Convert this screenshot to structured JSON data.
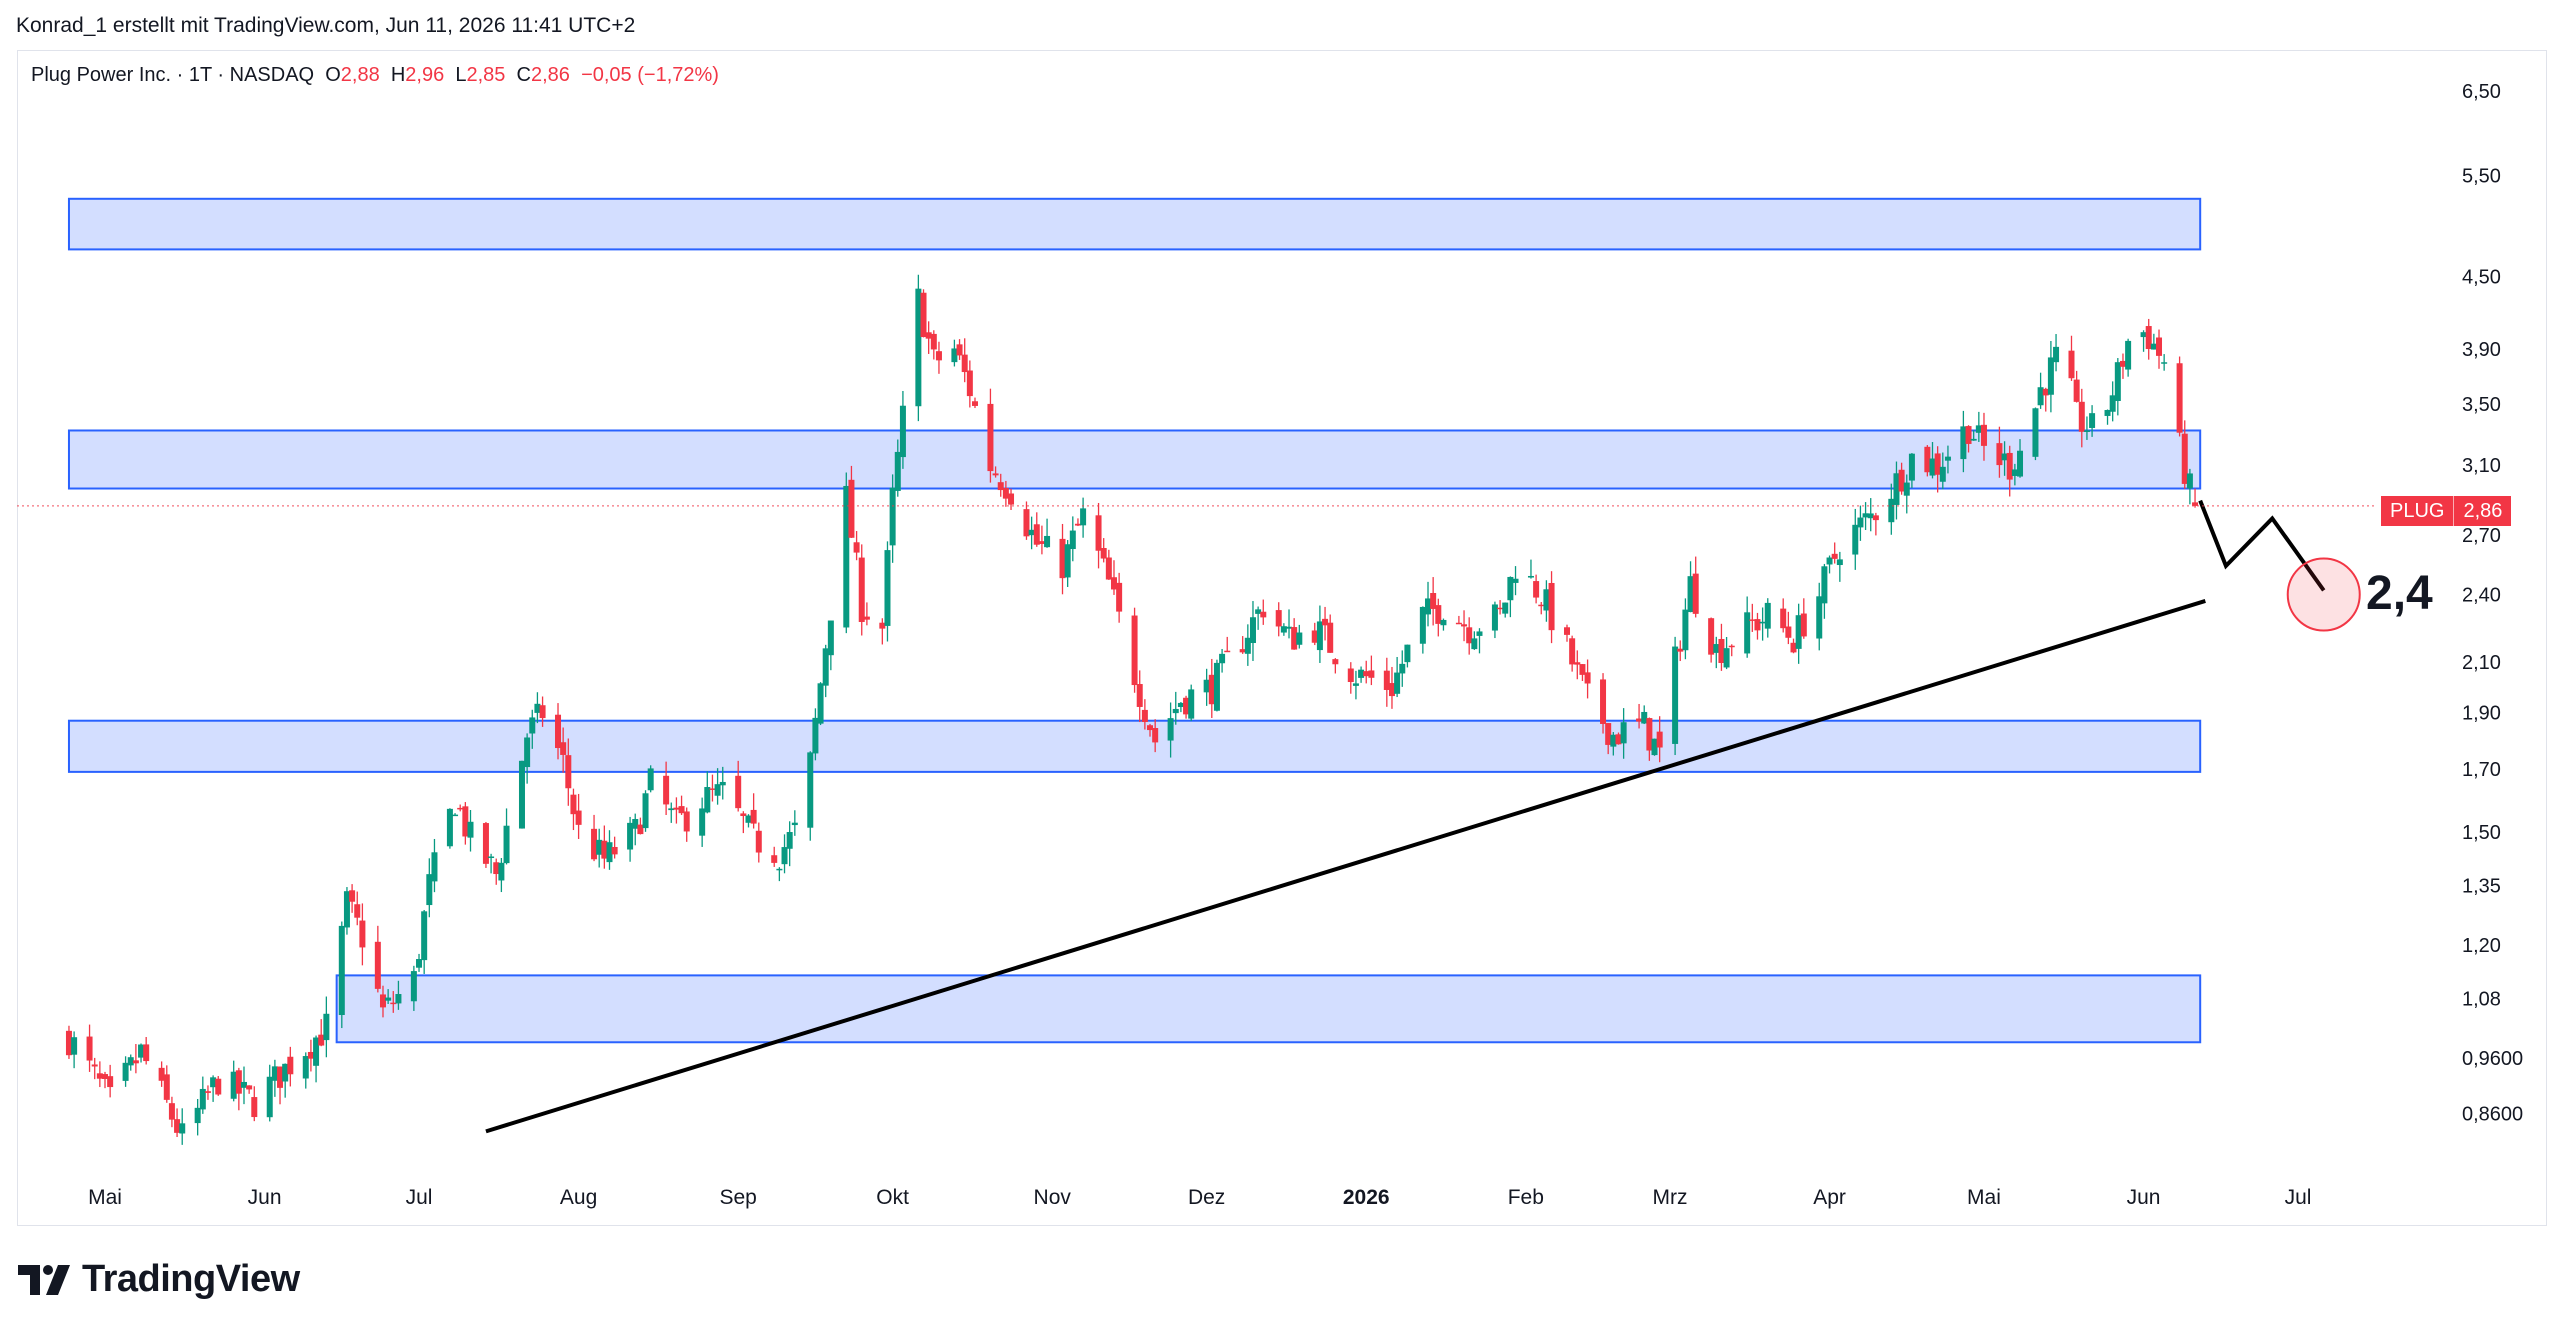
{
  "header": {
    "attribution": "Konrad_1 erstellt mit TradingView.com, Jun 11, 2026 11:41 UTC+2"
  },
  "legend": {
    "name": "Plug Power Inc.",
    "interval": "1T",
    "exchange": "NASDAQ",
    "open_label": "O",
    "open": "2,88",
    "high_label": "H",
    "high": "2,96",
    "low_label": "L",
    "low": "2,85",
    "close_label": "C",
    "close": "2,86",
    "change": "−0,05 (−1,72%)"
  },
  "price_badge": {
    "symbol": "PLUG",
    "value": "2,86"
  },
  "annotation": {
    "target_label": "2,4"
  },
  "brand": {
    "name": "TradingView"
  },
  "colors": {
    "up": "#089981",
    "down": "#f23645",
    "zone_fill": "#d3deff",
    "zone_border": "#2962ff",
    "trendline": "#000000"
  },
  "chart_data": {
    "type": "candlestick",
    "title": "Plug Power Inc. · 1T · NASDAQ",
    "y_scale": "log",
    "ylim": [
      0.8,
      6.8
    ],
    "y_ticks": [
      "6,50",
      "5,50",
      "4,50",
      "3,90",
      "3,50",
      "3,10",
      "2,70",
      "2,40",
      "2,10",
      "1,90",
      "1,70",
      "1,50",
      "1,35",
      "1,20",
      "1,08",
      "0,9600",
      "0,8600"
    ],
    "x_labels": [
      "Mai",
      "Jun",
      "Jul",
      "Aug",
      "Sep",
      "Okt",
      "Nov",
      "Dez",
      "2026",
      "Feb",
      "Mrz",
      "Apr",
      "Mai",
      "Jun",
      "Jul"
    ],
    "x_label_dates": [
      "2025-05-01",
      "2025-06-01",
      "2025-07-01",
      "2025-08-01",
      "2025-09-01",
      "2025-10-01",
      "2025-11-01",
      "2025-12-01",
      "2026-01-01",
      "2026-02-01",
      "2026-03-01",
      "2026-04-01",
      "2026-05-01",
      "2026-06-01",
      "2026-07-01"
    ],
    "last": {
      "open": 2.88,
      "high": 2.96,
      "low": 2.85,
      "close": 2.86,
      "change": -0.05,
      "change_pct": -1.72
    },
    "close_path": [
      [
        "2025-04-24",
        1.0
      ],
      [
        "2025-05-02",
        0.88
      ],
      [
        "2025-05-08",
        0.97
      ],
      [
        "2025-05-16",
        0.82
      ],
      [
        "2025-05-23",
        0.92
      ],
      [
        "2025-05-30",
        0.88
      ],
      [
        "2025-06-06",
        0.95
      ],
      [
        "2025-06-13",
        1.02
      ],
      [
        "2025-06-17",
        1.3
      ],
      [
        "2025-06-20",
        1.22
      ],
      [
        "2025-06-24",
        1.05
      ],
      [
        "2025-06-30",
        1.12
      ],
      [
        "2025-07-03",
        1.35
      ],
      [
        "2025-07-08",
        1.6
      ],
      [
        "2025-07-11",
        1.48
      ],
      [
        "2025-07-16",
        1.38
      ],
      [
        "2025-07-22",
        1.82
      ],
      [
        "2025-07-25",
        1.9
      ],
      [
        "2025-07-29",
        1.72
      ],
      [
        "2025-08-01",
        1.5
      ],
      [
        "2025-08-06",
        1.42
      ],
      [
        "2025-08-12",
        1.5
      ],
      [
        "2025-08-15",
        1.65
      ],
      [
        "2025-08-20",
        1.52
      ],
      [
        "2025-08-25",
        1.6
      ],
      [
        "2025-08-29",
        1.62
      ],
      [
        "2025-09-04",
        1.48
      ],
      [
        "2025-09-09",
        1.44
      ],
      [
        "2025-09-12",
        1.5
      ],
      [
        "2025-09-15",
        1.72
      ],
      [
        "2025-09-18",
        2.18
      ],
      [
        "2025-09-22",
        2.9
      ],
      [
        "2025-09-25",
        2.35
      ],
      [
        "2025-09-29",
        2.25
      ],
      [
        "2025-10-01",
        2.9
      ],
      [
        "2025-10-03",
        3.4
      ],
      [
        "2025-10-06",
        4.3
      ],
      [
        "2025-10-09",
        3.8
      ],
      [
        "2025-10-13",
        3.9
      ],
      [
        "2025-10-16",
        3.6
      ],
      [
        "2025-10-20",
        3.1
      ],
      [
        "2025-10-24",
        2.95
      ],
      [
        "2025-10-29",
        2.65
      ],
      [
        "2025-11-03",
        2.55
      ],
      [
        "2025-11-07",
        2.8
      ],
      [
        "2025-11-12",
        2.45
      ],
      [
        "2025-11-17",
        2.05
      ],
      [
        "2025-11-21",
        1.8
      ],
      [
        "2025-11-26",
        1.95
      ],
      [
        "2025-12-02",
        2.0
      ],
      [
        "2025-12-08",
        2.2
      ],
      [
        "2025-12-12",
        2.35
      ],
      [
        "2025-12-17",
        2.2
      ],
      [
        "2025-12-22",
        2.25
      ],
      [
        "2025-12-30",
        2.05
      ],
      [
        "2026-01-06",
        2.0
      ],
      [
        "2026-01-12",
        2.3
      ],
      [
        "2026-01-16",
        2.35
      ],
      [
        "2026-01-21",
        2.25
      ],
      [
        "2026-01-27",
        2.3
      ],
      [
        "2026-01-30",
        2.55
      ],
      [
        "2026-02-04",
        2.4
      ],
      [
        "2026-02-09",
        2.15
      ],
      [
        "2026-02-13",
        1.95
      ],
      [
        "2026-02-18",
        1.82
      ],
      [
        "2026-02-24",
        1.85
      ],
      [
        "2026-02-27",
        1.75
      ],
      [
        "2026-03-02",
        2.1
      ],
      [
        "2026-03-05",
        2.45
      ],
      [
        "2026-03-10",
        2.15
      ],
      [
        "2026-03-16",
        2.25
      ],
      [
        "2026-03-20",
        2.3
      ],
      [
        "2026-03-25",
        2.2
      ],
      [
        "2026-03-30",
        2.4
      ],
      [
        "2026-04-03",
        2.65
      ],
      [
        "2026-04-09",
        2.8
      ],
      [
        "2026-04-14",
        3.0
      ],
      [
        "2026-04-17",
        3.15
      ],
      [
        "2026-04-22",
        3.1
      ],
      [
        "2026-04-28",
        3.35
      ],
      [
        "2026-05-01",
        3.2
      ],
      [
        "2026-05-06",
        3.1
      ],
      [
        "2026-05-09",
        3.25
      ],
      [
        "2026-05-12",
        3.6
      ],
      [
        "2026-05-16",
        3.9
      ],
      [
        "2026-05-19",
        3.4
      ],
      [
        "2026-05-23",
        3.3
      ],
      [
        "2026-05-27",
        3.7
      ],
      [
        "2026-05-30",
        4.1
      ],
      [
        "2026-06-02",
        4.0
      ],
      [
        "2026-06-05",
        3.8
      ],
      [
        "2026-06-08",
        3.2
      ],
      [
        "2026-06-10",
        2.95
      ],
      [
        "2026-06-11",
        2.86
      ]
    ],
    "zones": [
      {
        "from": "2025-04-24",
        "to": "2026-06-12",
        "low": 4.75,
        "high": 5.25
      },
      {
        "from": "2025-04-24",
        "to": "2026-06-12",
        "low": 2.96,
        "high": 3.32
      },
      {
        "from": "2025-04-24",
        "to": "2026-06-12",
        "low": 1.69,
        "high": 1.87
      },
      {
        "from": "2025-06-15",
        "to": "2026-06-12",
        "low": 0.99,
        "high": 1.13
      }
    ],
    "trendline": {
      "from": [
        "2025-07-14",
        0.83
      ],
      "to": [
        "2026-06-13",
        2.37
      ]
    },
    "projection": [
      [
        "2026-06-12",
        2.89
      ],
      [
        "2026-06-17",
        2.54
      ],
      [
        "2026-06-26",
        2.79
      ],
      [
        "2026-07-06",
        2.42
      ]
    ],
    "target": {
      "date": "2026-07-06",
      "value": 2.4,
      "label": "2,4"
    },
    "current_price_line": 2.86
  }
}
